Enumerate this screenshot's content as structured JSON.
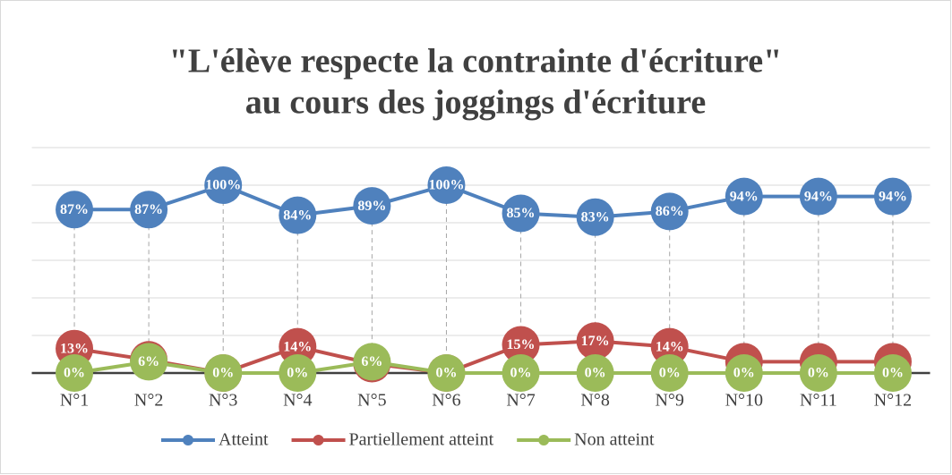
{
  "chart_data": {
    "type": "line",
    "title": [
      "\"L'élève respecte la contrainte d'écriture\"",
      "au cours des joggings d'écriture"
    ],
    "categories": [
      "N°1",
      "N°2",
      "N°3",
      "N°4",
      "N°5",
      "N°6",
      "N°7",
      "N°8",
      "N°9",
      "N°10",
      "N°11",
      "N°12"
    ],
    "series": [
      {
        "name": "Atteint",
        "color": "#4f81bd",
        "values": [
          87,
          87,
          100,
          84,
          89,
          100,
          85,
          83,
          86,
          94,
          94,
          94
        ],
        "value_labels": [
          "87%",
          "87%",
          "100%",
          "84%",
          "89%",
          "100%",
          "85%",
          "83%",
          "86%",
          "94%",
          "94%",
          "94%"
        ]
      },
      {
        "name": "Partiellement atteint",
        "color": "#c0504d",
        "values": [
          13,
          7,
          0,
          14,
          5,
          0,
          15,
          17,
          14,
          6,
          6,
          6
        ],
        "value_labels": [
          "13%",
          "7%",
          "0%",
          "14%",
          "5%",
          "0%",
          "15%",
          "17%",
          "14%",
          "6%",
          "6%",
          "6%"
        ]
      },
      {
        "name": "Non atteint",
        "color": "#9bbb59",
        "values": [
          0,
          6,
          0,
          0,
          6,
          0,
          0,
          0,
          0,
          0,
          0,
          0
        ],
        "value_labels": [
          "0%",
          "6%",
          "0%",
          "0%",
          "6%",
          "0%",
          "0%",
          "0%",
          "0%",
          "0%",
          "0%",
          "0%"
        ]
      }
    ],
    "ylim": [
      0,
      120
    ],
    "yticks": [
      0,
      20,
      40,
      60,
      80,
      100,
      120
    ],
    "grid": true,
    "drop_lines": true,
    "legend": "bottom"
  }
}
